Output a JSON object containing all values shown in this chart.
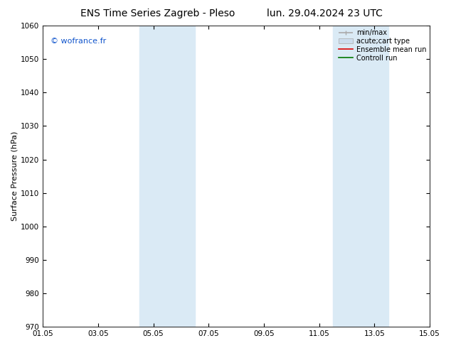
{
  "title_left": "ENS Time Series Zagreb - Pleso",
  "title_right": "lun. 29.04.2024 23 UTC",
  "ylabel": "Surface Pressure (hPa)",
  "ylim": [
    970,
    1060
  ],
  "yticks": [
    970,
    980,
    990,
    1000,
    1010,
    1020,
    1030,
    1040,
    1050,
    1060
  ],
  "xlim": [
    0,
    14
  ],
  "xtick_labels": [
    "01.05",
    "03.05",
    "05.05",
    "07.05",
    "09.05",
    "11.05",
    "13.05",
    "15.05"
  ],
  "xtick_positions": [
    0,
    2,
    4,
    6,
    8,
    10,
    12,
    14
  ],
  "shaded_bands": [
    {
      "x_start": 3.5,
      "x_end": 5.5,
      "color": "#daeaf5"
    },
    {
      "x_start": 10.5,
      "x_end": 12.5,
      "color": "#daeaf5"
    }
  ],
  "watermark": "© wofrance.fr",
  "watermark_color": "#1155cc",
  "background_color": "#ffffff",
  "legend_items": [
    {
      "label": "min/max",
      "color": "#aaaaaa",
      "lw": 1.2
    },
    {
      "label": "acute;cart type",
      "color": "#ccddee",
      "lw": 6
    },
    {
      "label": "Ensemble mean run",
      "color": "#dd0000",
      "lw": 1.2
    },
    {
      "label": "Controll run",
      "color": "#007700",
      "lw": 1.2
    }
  ],
  "title_fontsize": 10,
  "ylabel_fontsize": 8,
  "tick_fontsize": 7.5,
  "watermark_fontsize": 8,
  "legend_fontsize": 7
}
